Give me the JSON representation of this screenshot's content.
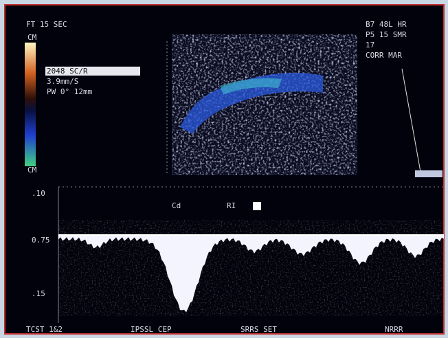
{
  "header": {
    "left": "FT  15 SEC",
    "right": [
      "B7 48L HR",
      "P5 15 SMR",
      "17",
      "CORR  MAR"
    ]
  },
  "settings": [
    "2048 SC/R",
    "3.9mm/S",
    "PW 0° 12mm"
  ],
  "color_bar": {
    "top": "CM",
    "bottom": "CM"
  },
  "spectrum": {
    "axis_labels": [
      ".10",
      "0.75",
      ".15"
    ],
    "markers": [
      "Cd",
      "RI"
    ]
  },
  "footer": [
    "TCST 1&2",
    "IPSSL CEP",
    "SRRS SET",
    "NRRR"
  ]
}
